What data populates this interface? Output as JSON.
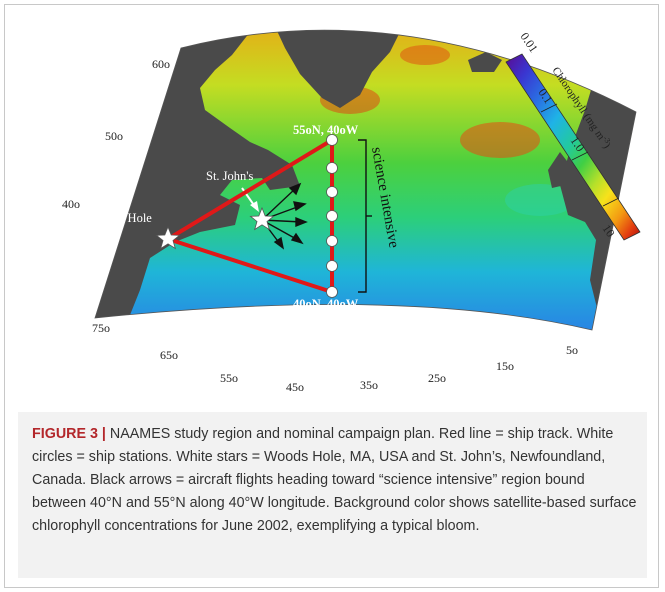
{
  "map": {
    "lat_labels": [
      "60o",
      "50o",
      "40o"
    ],
    "lon_labels": [
      "75o",
      "65o",
      "55o",
      "45o",
      "35o",
      "25o",
      "15o",
      "5o"
    ],
    "places": {
      "st_johns": "St. John's",
      "woods_hole": "Woods Hole"
    },
    "stations": {
      "north": "55oN, 40oW",
      "south": "40oN, 40oW"
    },
    "region_label": "science intensive",
    "colorbar": {
      "title": "Chlorophyll (mg m",
      "title_sup": "-3",
      "title_end": ")",
      "ticks": [
        "0.01",
        "0.1",
        "1.0",
        "10"
      ],
      "colors": [
        "#5b0a91",
        "#2f4fd8",
        "#1fa6e8",
        "#18c6b0",
        "#3fcf4a",
        "#b5e02a",
        "#f7e21b",
        "#f39a12",
        "#e23b10",
        "#a80c0c"
      ]
    },
    "colors": {
      "land": "#4a4a4a",
      "ship_track": "#e01818",
      "arrows": "#111111"
    }
  },
  "caption": {
    "figure_label": "FIGURE 3",
    "separator": " | ",
    "text": "NAAMES study region and nominal campaign plan. Red line = ship track. White circles = ship stations. White stars = Woods Hole, MA, USA and St. John’s, Newfoundland, Canada. Black arrows = aircraft flights heading toward “science intensive” region bound between 40°N and 55°N along 40°W longitude. Background color shows satellite-based surface chlorophyll concentrations for June 2002, exemplifying a typical bloom."
  }
}
